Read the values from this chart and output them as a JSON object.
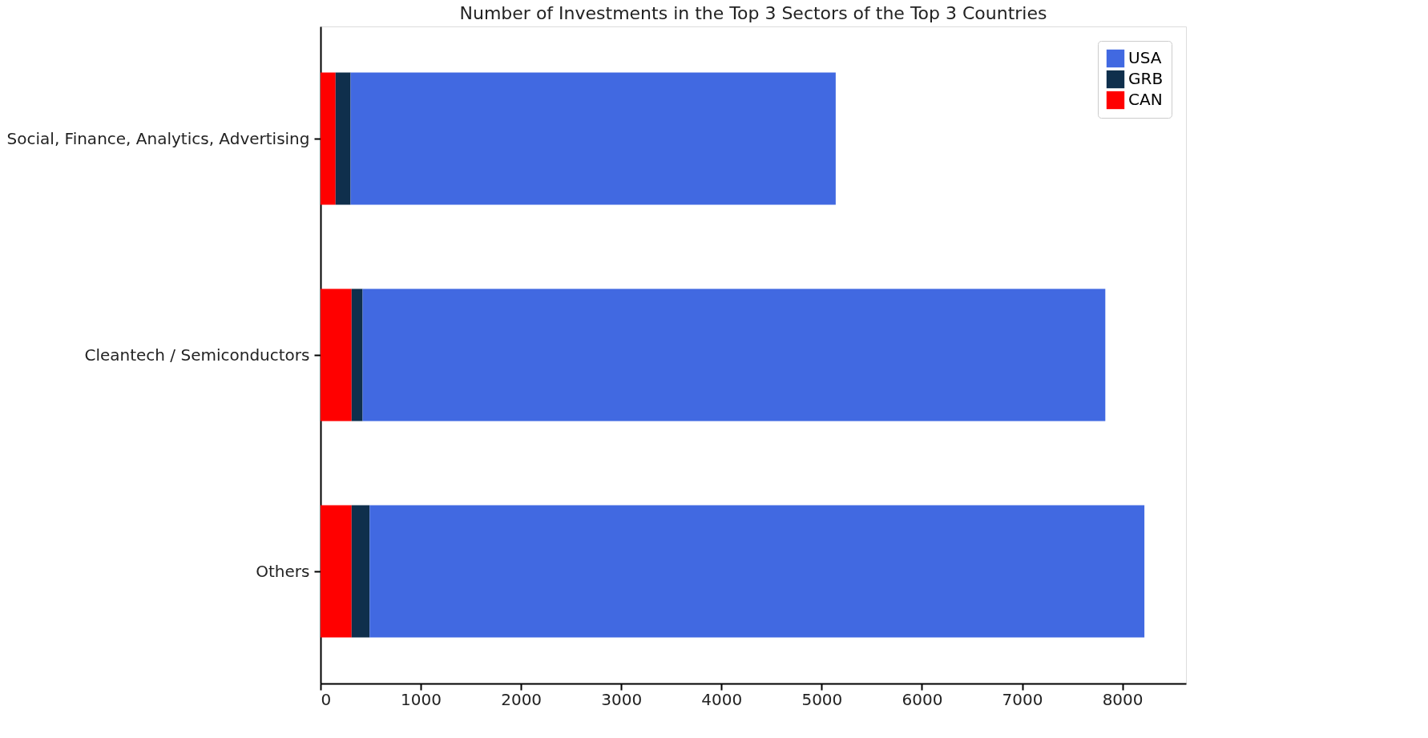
{
  "chart_data": {
    "type": "bar",
    "orientation": "horizontal",
    "stacked": true,
    "title": "Number of Investments in the Top 3 Sectors of the Top 3 Countries",
    "categories": [
      "Social, Finance, Analytics, Advertising",
      "Cleantech / Semiconductors",
      "Others"
    ],
    "series": [
      {
        "name": "CAN",
        "color": "#ff0000",
        "values": [
          150,
          310,
          310
        ]
      },
      {
        "name": "GRB",
        "color": "#0f2f4c",
        "values": [
          150,
          110,
          180
        ]
      },
      {
        "name": "USA",
        "color": "#4169e1",
        "values": [
          4840,
          7410,
          7730
        ]
      }
    ],
    "xlim": [
      0,
      8635
    ],
    "xticks": [
      0,
      1000,
      2000,
      3000,
      4000,
      5000,
      6000,
      7000,
      8000
    ],
    "grid": false,
    "legend": "top right"
  }
}
